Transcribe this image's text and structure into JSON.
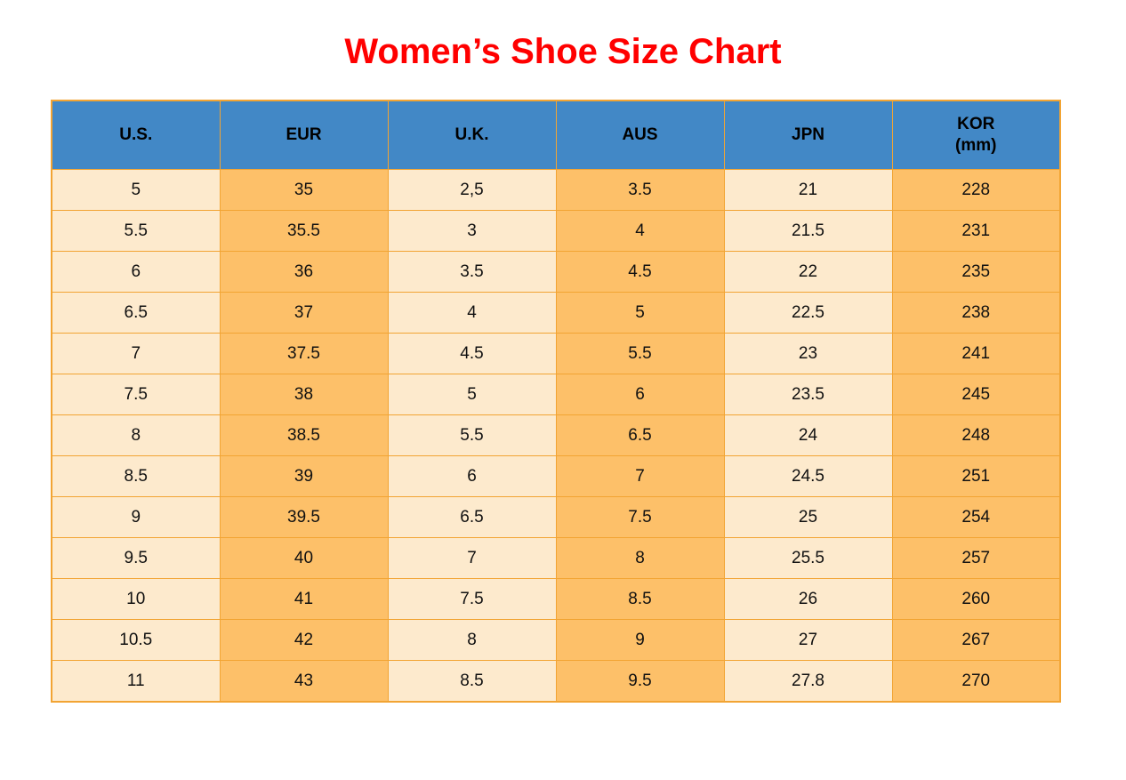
{
  "title": {
    "text": "Women’s Shoe Size Chart"
  },
  "colors": {
    "title_red": "#ff0000",
    "header_blue": "#4288c6",
    "cell_light": "#fdeacd",
    "cell_dark": "#fdc069",
    "grid_border": "#f2a433",
    "text": "#111111"
  },
  "chart_data": {
    "type": "table",
    "title": "Women’s Shoe Size Chart",
    "legend_position": "none",
    "grid": true,
    "columns": [
      {
        "label": "U.S.",
        "sublabel": ""
      },
      {
        "label": "EUR",
        "sublabel": ""
      },
      {
        "label": "U.K.",
        "sublabel": ""
      },
      {
        "label": "AUS",
        "sublabel": ""
      },
      {
        "label": "JPN",
        "sublabel": ""
      },
      {
        "label": "KOR",
        "sublabel": "(mm)"
      }
    ],
    "rows": [
      [
        "5",
        "35",
        "2,5",
        "3.5",
        "21",
        "228"
      ],
      [
        "5.5",
        "35.5",
        "3",
        "4",
        "21.5",
        "231"
      ],
      [
        "6",
        "36",
        "3.5",
        "4.5",
        "22",
        "235"
      ],
      [
        "6.5",
        "37",
        "4",
        "5",
        "22.5",
        "238"
      ],
      [
        "7",
        "37.5",
        "4.5",
        "5.5",
        "23",
        "241"
      ],
      [
        "7.5",
        "38",
        "5",
        "6",
        "23.5",
        "245"
      ],
      [
        "8",
        "38.5",
        "5.5",
        "6.5",
        "24",
        "248"
      ],
      [
        "8.5",
        "39",
        "6",
        "7",
        "24.5",
        "251"
      ],
      [
        "9",
        "39.5",
        "6.5",
        "7.5",
        "25",
        "254"
      ],
      [
        "9.5",
        "40",
        "7",
        "8",
        "25.5",
        "257"
      ],
      [
        "10",
        "41",
        "7.5",
        "8.5",
        "26",
        "260"
      ],
      [
        "10.5",
        "42",
        "8",
        "9",
        "27",
        "267"
      ],
      [
        "11",
        "43",
        "8.5",
        "9.5",
        "27.8",
        "270"
      ]
    ]
  }
}
